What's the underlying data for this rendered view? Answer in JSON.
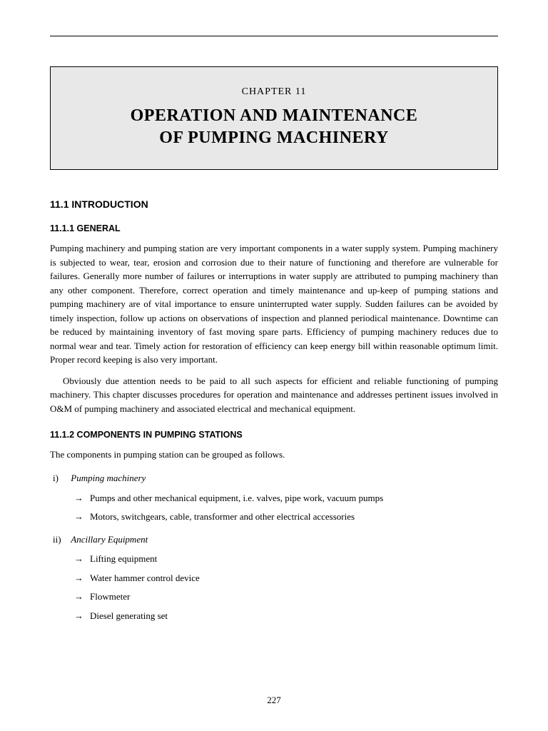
{
  "chapter": {
    "label": "CHAPTER  11",
    "title_line1": "OPERATION AND MAINTENANCE",
    "title_line2": "OF PUMPING MACHINERY"
  },
  "section_11_1": {
    "heading": "11.1  INTRODUCTION"
  },
  "section_11_1_1": {
    "heading": "11.1.1  GENERAL",
    "para1": "Pumping machinery and pumping station are very important components in a water supply system. Pumping machinery is subjected to wear, tear, erosion and corrosion due to their nature of functioning and therefore are vulnerable for failures. Generally more number of failures or interruptions in water supply are attributed to pumping machinery than any other component. Therefore, correct operation and timely maintenance and up-keep of pumping stations and pumping machinery are of vital importance to ensure uninterrupted water supply. Sudden failures can be avoided by timely inspection, follow up actions on observations of inspection and planned periodical maintenance. Downtime can be reduced by maintaining inventory of fast moving spare parts. Efficiency of pumping machinery reduces due to normal wear and tear. Timely action for restoration of efficiency can keep energy bill within reasonable optimum limit. Proper record keeping is also very important.",
    "para2": "Obviously due attention needs to be paid to all such aspects for efficient and reliable functioning of pumping machinery. This chapter discusses procedures for operation and maintenance and addresses pertinent issues involved in O&M of pumping machinery and associated electrical and mechanical equipment."
  },
  "section_11_1_2": {
    "heading": "11.1.2  COMPONENTS IN PUMPING STATIONS",
    "intro": "The components in pumping station can be grouped as follows.",
    "groups": [
      {
        "roman": "i)",
        "title": "Pumping  machinery",
        "items": [
          "Pumps and other mechanical equipment, i.e. valves, pipe work, vacuum pumps",
          "Motors, switchgears, cable, transformer and other electrical accessories"
        ]
      },
      {
        "roman": "ii)",
        "title": "Ancillary  Equipment",
        "items": [
          "Lifting equipment",
          "Water hammer control device",
          "Flowmeter",
          "Diesel generating set"
        ]
      }
    ]
  },
  "page_number": "227"
}
